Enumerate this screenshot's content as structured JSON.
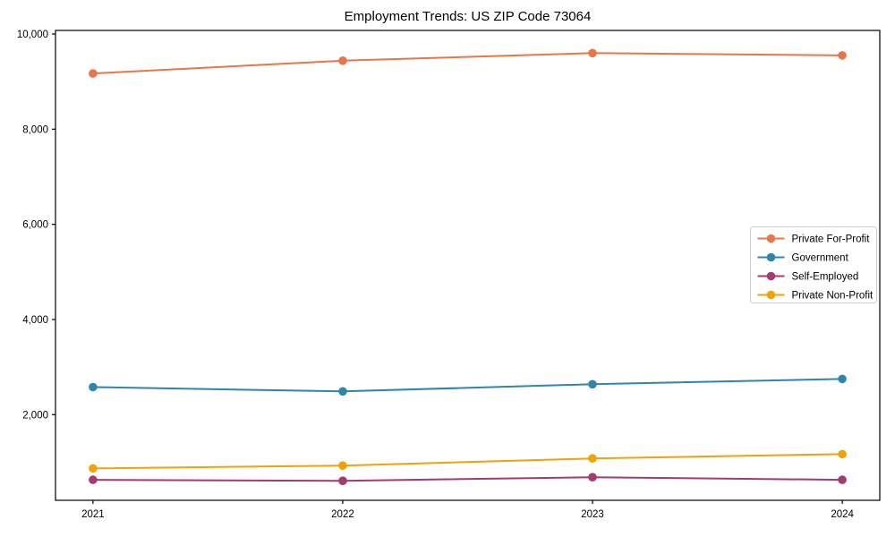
{
  "title": "Employment Trends: US ZIP Code 73064",
  "chart_data": {
    "type": "line",
    "title": "Employment Trends: US ZIP Code 73064",
    "categories": [
      2021,
      2022,
      2023,
      2024
    ],
    "x_tick_labels": [
      "2021",
      "2022",
      "2023",
      "2024"
    ],
    "series": [
      {
        "name": "Private For-Profit",
        "color": "#E8764B",
        "values": [
          9170,
          9440,
          9600,
          9550
        ]
      },
      {
        "name": "Government",
        "color": "#2E86AB",
        "values": [
          2580,
          2490,
          2640,
          2750
        ]
      },
      {
        "name": "Self-Employed",
        "color": "#A23B72",
        "values": [
          630,
          610,
          685,
          630
        ]
      },
      {
        "name": "Private Non-Profit",
        "color": "#F1A208",
        "values": [
          870,
          930,
          1080,
          1170
        ]
      }
    ],
    "xlabel": "",
    "ylabel": "",
    "ylim": [
      200,
      10075
    ],
    "yticks": [
      2000,
      4000,
      6000,
      8000,
      10000
    ],
    "ytick_labels": [
      "2,000",
      "4,000",
      "6,000",
      "8,000",
      "10,000"
    ],
    "grid": false,
    "frame": "full-box",
    "marker": "circle",
    "legend_position": "center-right",
    "axis_color": "#000000",
    "legend_border_color": "#cccccc"
  }
}
